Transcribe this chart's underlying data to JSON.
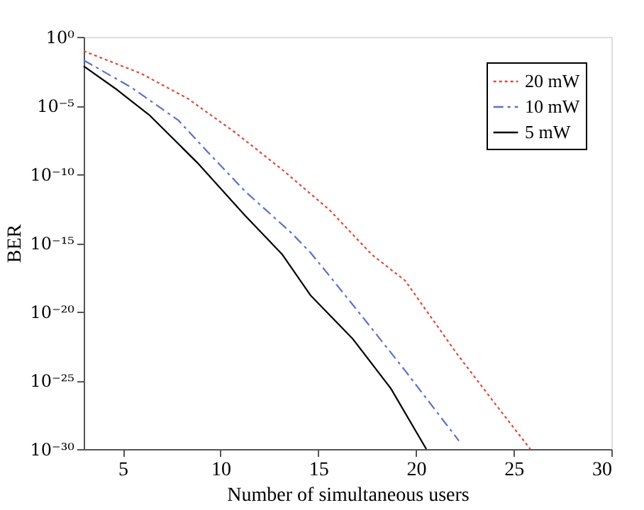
{
  "chart_data": {
    "type": "line",
    "xlabel": "Number of simultaneous users",
    "ylabel": "BER",
    "xlim": [
      3,
      30
    ],
    "xticks": [
      5,
      10,
      15,
      20,
      25,
      30
    ],
    "ylim": [
      1e-30,
      1
    ],
    "log": "y",
    "yticks": [
      {
        "value": 1,
        "label": "10⁰"
      },
      {
        "value": 1e-05,
        "label": "10⁻⁵"
      },
      {
        "value": 1e-10,
        "label": "10⁻¹⁰"
      },
      {
        "value": 1e-15,
        "label": "10⁻¹⁵"
      },
      {
        "value": 1e-20,
        "label": "10⁻²⁰"
      },
      {
        "value": 1e-25,
        "label": "10⁻²⁵"
      },
      {
        "value": 1e-30,
        "label": "10⁻³⁰"
      }
    ],
    "grid": false,
    "legend": "top right",
    "marker": "none",
    "series": [
      {
        "name": "20 mW",
        "color": "#e04a3a",
        "line_style": "dotted",
        "x": [
          3,
          5.92,
          8.33,
          10.75,
          13.17,
          15.58,
          17.75,
          19.45,
          22.1,
          24.04,
          25.85
        ],
        "values": [
          0.093,
          0.0022,
          3.2e-05,
          1.1e-07,
          2.1e-10,
          2.5e-13,
          1.4e-16,
          1.8e-18,
          8.5e-24,
          2.1e-27,
          1e-30
        ]
      },
      {
        "name": "10 mW",
        "color": "#5a6fd0",
        "line_style": "dashed",
        "x": [
          3,
          5.43,
          7.85,
          9.3,
          11.23,
          13.65,
          14.6,
          15.58,
          17.5,
          19.45,
          22.2
        ],
        "values": [
          0.02,
          0.00021,
          8.3e-07,
          4.9e-09,
          6.3e-12,
          5e-15,
          2e-16,
          4e-18,
          1.6e-21,
          5e-25,
          4e-30
        ]
      },
      {
        "name": "5 mW",
        "color": "#000000",
        "line_style": "solid",
        "x": [
          3,
          4.71,
          6.4,
          8.82,
          11.23,
          13.17,
          14.6,
          16.78,
          18.72,
          20.53
        ],
        "values": [
          0.0074,
          0.00014,
          1.8e-06,
          6.8e-10,
          1.1e-13,
          1.4e-16,
          1.6e-19,
          1e-22,
          2.5e-26,
          1e-30
        ]
      }
    ]
  }
}
